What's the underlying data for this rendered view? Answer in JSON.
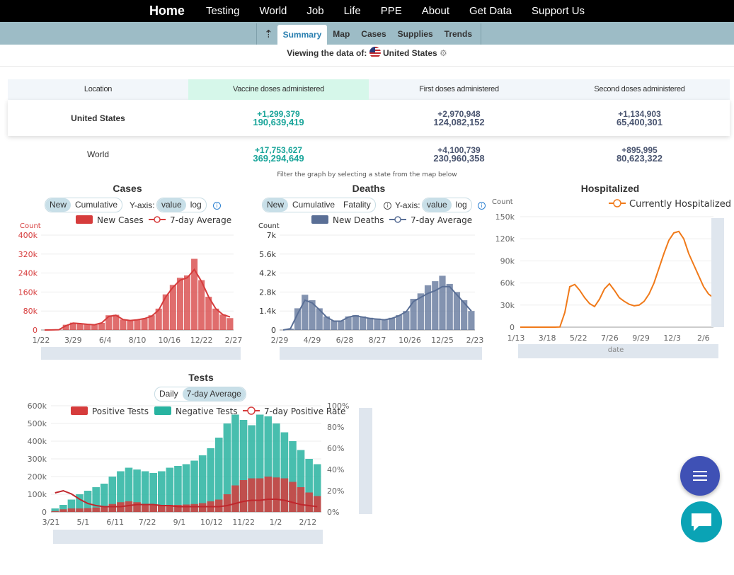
{
  "nav": {
    "home": "Home",
    "items": [
      "Testing",
      "World",
      "Job",
      "Life",
      "PPE",
      "About",
      "Get Data",
      "Support Us"
    ]
  },
  "subnav": {
    "up": "⇡",
    "tabs": [
      "Summary",
      "Map",
      "Cases",
      "Supplies",
      "Trends"
    ],
    "active": "Summary"
  },
  "viewing": {
    "prefix": "Viewing the data of:",
    "location": "United States",
    "gear": "⚙"
  },
  "vaccine_table": {
    "headers": [
      "Location",
      "Vaccine doses administered",
      "First doses administered",
      "Second doses administered"
    ],
    "rows": [
      {
        "location": "United States",
        "vaccine_delta": "+1,299,379",
        "vaccine_total": "190,639,419",
        "first_delta": "+2,970,948",
        "first_total": "124,082,152",
        "second_delta": "+1,134,903",
        "second_total": "65,400,301"
      },
      {
        "location": "World",
        "vaccine_delta": "+17,753,627",
        "vaccine_total": "369,294,649",
        "first_delta": "+4,100,739",
        "first_total": "230,960,358",
        "second_delta": "+895,995",
        "second_total": "80,623,322"
      }
    ]
  },
  "filter_note": "Filter the graph by selecting a state from the map below",
  "colors": {
    "cases": "#d63c3c",
    "deaths": "#5a6f96",
    "hosp": "#f07a1a",
    "pos": "#d63c3c",
    "neg": "#28b3a0",
    "teal": "#1aa59a"
  },
  "cases_chart": {
    "title": "Cases",
    "toggle": [
      "New",
      "Cumulative"
    ],
    "yaxis_label": "Y-axis:",
    "scale": [
      "value",
      "log"
    ],
    "info": "i"
  },
  "deaths_chart": {
    "title": "Deaths",
    "toggle": [
      "New",
      "Cumulative",
      "Fatality"
    ],
    "yaxis_label": "Y-axis:",
    "scale": [
      "value",
      "log"
    ],
    "info": "i"
  },
  "hosp_chart": {
    "title": "Hospitalized"
  },
  "tests_chart": {
    "title": "Tests",
    "toggle": [
      "Daily",
      "7-day Average"
    ]
  },
  "chart_data": [
    {
      "type": "bar",
      "title": "Cases",
      "ylabel": "Count",
      "ylim": [
        0,
        400000
      ],
      "yticks": [
        "0",
        "80k",
        "160k",
        "240k",
        "320k",
        "400k"
      ],
      "xticks": [
        "1/22",
        "3/29",
        "6/4",
        "8/10",
        "10/16",
        "12/22",
        "2/27"
      ],
      "series": [
        {
          "name": "New Cases",
          "kind": "bar",
          "values": [
            0,
            200,
            1000,
            22000,
            31000,
            28000,
            24000,
            22000,
            30000,
            62000,
            64000,
            44000,
            40000,
            43000,
            48000,
            62000,
            90000,
            150000,
            190000,
            220000,
            230000,
            300000,
            210000,
            140000,
            90000,
            65000,
            50000
          ]
        },
        {
          "name": "7-day Average",
          "kind": "line",
          "values": [
            0,
            200,
            1000,
            18000,
            29000,
            27000,
            24000,
            22000,
            30000,
            57000,
            62000,
            44000,
            40000,
            43000,
            48000,
            58000,
            84000,
            140000,
            180000,
            210000,
            220000,
            255000,
            205000,
            140000,
            90000,
            65000,
            55000
          ]
        }
      ]
    },
    {
      "type": "bar",
      "title": "Deaths",
      "ylabel": "Count",
      "ylim": [
        0,
        7000
      ],
      "yticks": [
        "0",
        "1.4k",
        "2.8k",
        "4.2k",
        "5.6k",
        "7k"
      ],
      "xticks": [
        "2/29",
        "4/29",
        "6/28",
        "8/27",
        "10/26",
        "12/25",
        "2/23"
      ],
      "series": [
        {
          "name": "New Deaths",
          "kind": "bar",
          "values": [
            0,
            100,
            1600,
            2600,
            2200,
            1600,
            1000,
            700,
            700,
            1000,
            1100,
            1000,
            900,
            850,
            800,
            900,
            1100,
            1400,
            2300,
            2700,
            3300,
            3600,
            4000,
            3400,
            2800,
            2200,
            1400
          ]
        },
        {
          "name": "7-day Average",
          "kind": "line",
          "values": [
            0,
            100,
            1200,
            2200,
            2000,
            1500,
            950,
            650,
            650,
            950,
            1050,
            950,
            850,
            800,
            750,
            850,
            1050,
            1350,
            2100,
            2400,
            2700,
            2900,
            3200,
            3200,
            2600,
            2000,
            1400
          ]
        }
      ]
    },
    {
      "type": "line",
      "title": "Hospitalized",
      "ylabel": "Count",
      "xlabel": "date",
      "ylim": [
        0,
        150000
      ],
      "yticks": [
        "0",
        "30k",
        "60k",
        "90k",
        "120k",
        "150k"
      ],
      "xticks": [
        "1/13",
        "3/18",
        "5/22",
        "7/26",
        "9/29",
        "12/3",
        "2/6"
      ],
      "series": [
        {
          "name": "Currently Hospitalized",
          "values": [
            0,
            0,
            0,
            0,
            0,
            0,
            0,
            0,
            200,
            20000,
            55000,
            58000,
            50000,
            40000,
            32000,
            28000,
            38000,
            52000,
            59000,
            50000,
            40000,
            35000,
            31000,
            29000,
            30000,
            35000,
            45000,
            60000,
            80000,
            100000,
            118000,
            128000,
            130000,
            120000,
            100000,
            85000,
            70000,
            55000,
            45000,
            40000
          ]
        }
      ]
    },
    {
      "type": "bar",
      "title": "Tests",
      "ylim": [
        0,
        600000
      ],
      "yticks": [
        "0",
        "100k",
        "200k",
        "300k",
        "400k",
        "500k",
        "600k"
      ],
      "y2ticks": [
        "0%",
        "20%",
        "40%",
        "60%",
        "80%",
        "100%"
      ],
      "xticks": [
        "3/21",
        "5/1",
        "6/11",
        "7/22",
        "9/1",
        "10/12",
        "11/22",
        "1/2",
        "2/12"
      ],
      "series": [
        {
          "name": "Positive Tests",
          "kind": "bar",
          "values": [
            5000,
            15000,
            20000,
            20000,
            22000,
            25000,
            30000,
            45000,
            55000,
            60000,
            55000,
            45000,
            42000,
            40000,
            40000,
            40000,
            42000,
            45000,
            50000,
            60000,
            70000,
            100000,
            150000,
            180000,
            190000,
            190000,
            200000,
            195000,
            190000,
            170000,
            140000,
            110000,
            90000
          ]
        },
        {
          "name": "Negative Tests",
          "kind": "bar",
          "values": [
            20000,
            40000,
            70000,
            100000,
            120000,
            140000,
            160000,
            200000,
            230000,
            250000,
            240000,
            230000,
            220000,
            230000,
            250000,
            260000,
            270000,
            290000,
            320000,
            360000,
            420000,
            500000,
            550000,
            520000,
            490000,
            550000,
            540000,
            500000,
            450000,
            400000,
            350000,
            300000,
            270000
          ]
        },
        {
          "name": "7-day Positive Rate",
          "kind": "line",
          "axis": "right",
          "values": [
            18,
            20,
            17,
            12,
            8,
            6,
            5,
            5,
            5,
            6,
            7,
            7,
            7,
            6,
            6,
            5,
            5,
            5,
            5,
            5,
            5,
            6,
            8,
            10,
            11,
            11,
            12,
            12,
            11,
            9,
            7,
            6,
            5
          ]
        }
      ]
    }
  ],
  "fab": {
    "menu_icon": "menu-icon",
    "chat_icon": "chat-icon"
  }
}
